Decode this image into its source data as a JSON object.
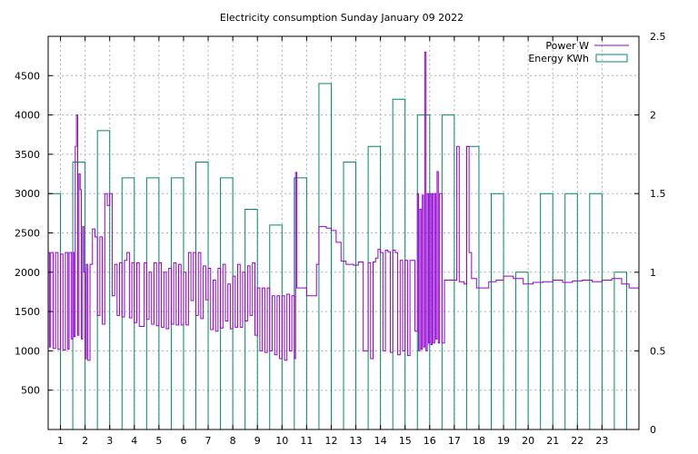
{
  "chart_data": {
    "type": "line",
    "title": "Electricity consumption Sunday January 09 2022",
    "grid": true,
    "legend_position": "top-right",
    "x_ticks": [
      "1",
      "2",
      "3",
      "4",
      "5",
      "6",
      "7",
      "8",
      "9",
      "10",
      "11",
      "12",
      "13",
      "14",
      "15",
      "16",
      "17",
      "18",
      "19",
      "20",
      "21",
      "22",
      "23"
    ],
    "x_range": [
      0,
      24
    ],
    "y_left": {
      "range": [
        0,
        5000
      ],
      "ticks": [
        "500",
        "1000",
        "1500",
        "2000",
        "2500",
        "3000",
        "3500",
        "4000",
        "4500"
      ]
    },
    "y_right": {
      "range": [
        0,
        2.5
      ],
      "ticks": [
        "0",
        "0.5",
        "1",
        "1.5",
        "2",
        "2.5"
      ]
    },
    "series": [
      {
        "name": "Power W",
        "axis": "left",
        "color": "#9400d3",
        "style": "step-line",
        "points": [
          [
            0.0,
            2250
          ],
          [
            0.05,
            1050
          ],
          [
            0.1,
            2250
          ],
          [
            0.2,
            1030
          ],
          [
            0.3,
            2250
          ],
          [
            0.4,
            1020
          ],
          [
            0.5,
            2230
          ],
          [
            0.6,
            1010
          ],
          [
            0.7,
            2250
          ],
          [
            0.8,
            1020
          ],
          [
            0.85,
            2250
          ],
          [
            0.95,
            1150
          ],
          [
            1.0,
            2250
          ],
          [
            1.05,
            1180
          ],
          [
            1.1,
            3600
          ],
          [
            1.15,
            4000
          ],
          [
            1.2,
            1200
          ],
          [
            1.25,
            3250
          ],
          [
            1.3,
            3050
          ],
          [
            1.35,
            1150
          ],
          [
            1.4,
            2580
          ],
          [
            1.45,
            2000
          ],
          [
            1.5,
            900
          ],
          [
            1.55,
            2100
          ],
          [
            1.6,
            880
          ],
          [
            1.7,
            2100
          ],
          [
            1.8,
            2550
          ],
          [
            1.9,
            2450
          ],
          [
            2.0,
            1450
          ],
          [
            2.1,
            2450
          ],
          [
            2.2,
            1340
          ],
          [
            2.3,
            3000
          ],
          [
            2.4,
            2850
          ],
          [
            2.5,
            3000
          ],
          [
            2.6,
            1700
          ],
          [
            2.7,
            2100
          ],
          [
            2.8,
            1450
          ],
          [
            2.9,
            2120
          ],
          [
            3.0,
            1430
          ],
          [
            3.1,
            2150
          ],
          [
            3.2,
            2250
          ],
          [
            3.3,
            1420
          ],
          [
            3.4,
            2120
          ],
          [
            3.5,
            1360
          ],
          [
            3.6,
            2120
          ],
          [
            3.7,
            1310
          ],
          [
            3.9,
            2120
          ],
          [
            4.0,
            1400
          ],
          [
            4.1,
            2000
          ],
          [
            4.2,
            1340
          ],
          [
            4.3,
            2120
          ],
          [
            4.4,
            1320
          ],
          [
            4.5,
            2120
          ],
          [
            4.6,
            1300
          ],
          [
            4.7,
            2000
          ],
          [
            4.8,
            1280
          ],
          [
            4.9,
            2050
          ],
          [
            5.0,
            1340
          ],
          [
            5.1,
            2120
          ],
          [
            5.2,
            1330
          ],
          [
            5.3,
            2100
          ],
          [
            5.4,
            1330
          ],
          [
            5.5,
            2000
          ],
          [
            5.6,
            1330
          ],
          [
            5.7,
            2250
          ],
          [
            5.8,
            1640
          ],
          [
            5.9,
            2250
          ],
          [
            6.0,
            1450
          ],
          [
            6.1,
            2250
          ],
          [
            6.2,
            1410
          ],
          [
            6.3,
            2080
          ],
          [
            6.4,
            1650
          ],
          [
            6.5,
            2050
          ],
          [
            6.6,
            1270
          ],
          [
            6.7,
            1900
          ],
          [
            6.8,
            1250
          ],
          [
            6.9,
            2050
          ],
          [
            7.0,
            1290
          ],
          [
            7.1,
            2100
          ],
          [
            7.2,
            1380
          ],
          [
            7.3,
            1850
          ],
          [
            7.4,
            1280
          ],
          [
            7.5,
            1950
          ],
          [
            7.6,
            1300
          ],
          [
            7.7,
            2100
          ],
          [
            7.8,
            1300
          ],
          [
            7.9,
            2000
          ],
          [
            8.0,
            1380
          ],
          [
            8.1,
            2080
          ],
          [
            8.2,
            1450
          ],
          [
            8.3,
            2120
          ],
          [
            8.4,
            1200
          ],
          [
            8.5,
            1800
          ],
          [
            8.6,
            1000
          ],
          [
            8.7,
            1800
          ],
          [
            8.8,
            980
          ],
          [
            8.9,
            1800
          ],
          [
            9.0,
            1000
          ],
          [
            9.1,
            1700
          ],
          [
            9.2,
            950
          ],
          [
            9.3,
            1700
          ],
          [
            9.4,
            900
          ],
          [
            9.5,
            1700
          ],
          [
            9.6,
            880
          ],
          [
            9.7,
            1720
          ],
          [
            9.8,
            1000
          ],
          [
            9.9,
            1700
          ],
          [
            10.0,
            900
          ],
          [
            10.05,
            3270
          ],
          [
            10.1,
            1800
          ],
          [
            10.3,
            1800
          ],
          [
            10.5,
            1700
          ],
          [
            10.9,
            2100
          ],
          [
            11.0,
            2580
          ],
          [
            11.3,
            2560
          ],
          [
            11.5,
            2530
          ],
          [
            11.7,
            2380
          ],
          [
            11.9,
            2140
          ],
          [
            12.1,
            2100
          ],
          [
            12.4,
            2090
          ],
          [
            12.6,
            2130
          ],
          [
            12.8,
            1000
          ],
          [
            13.0,
            2120
          ],
          [
            13.1,
            900
          ],
          [
            13.2,
            2130
          ],
          [
            13.3,
            2180
          ],
          [
            13.4,
            2290
          ],
          [
            13.5,
            2250
          ],
          [
            13.6,
            1000
          ],
          [
            13.7,
            2280
          ],
          [
            13.8,
            2260
          ],
          [
            13.9,
            980
          ],
          [
            14.0,
            2280
          ],
          [
            14.1,
            2250
          ],
          [
            14.2,
            950
          ],
          [
            14.3,
            2150
          ],
          [
            14.4,
            1000
          ],
          [
            14.5,
            2150
          ],
          [
            14.6,
            940
          ],
          [
            14.7,
            2150
          ],
          [
            14.9,
            1250
          ],
          [
            15.0,
            3000
          ],
          [
            15.05,
            1000
          ],
          [
            15.1,
            2800
          ],
          [
            15.15,
            1020
          ],
          [
            15.2,
            2980
          ],
          [
            15.25,
            1050
          ],
          [
            15.3,
            4800
          ],
          [
            15.35,
            1000
          ],
          [
            15.4,
            3000
          ],
          [
            15.45,
            1100
          ],
          [
            15.5,
            3000
          ],
          [
            15.55,
            1080
          ],
          [
            15.6,
            3000
          ],
          [
            15.65,
            1100
          ],
          [
            15.7,
            3000
          ],
          [
            15.75,
            1150
          ],
          [
            15.8,
            3280
          ],
          [
            15.85,
            1100
          ],
          [
            15.9,
            3000
          ],
          [
            16.0,
            1100
          ],
          [
            16.1,
            1900
          ],
          [
            16.4,
            1900
          ],
          [
            16.6,
            3600
          ],
          [
            16.7,
            1880
          ],
          [
            16.9,
            1850
          ],
          [
            17.0,
            3600
          ],
          [
            17.1,
            2250
          ],
          [
            17.2,
            1920
          ],
          [
            17.4,
            1800
          ],
          [
            17.9,
            1880
          ],
          [
            18.2,
            1900
          ],
          [
            18.5,
            1950
          ],
          [
            18.9,
            1920
          ],
          [
            19.3,
            1850
          ],
          [
            19.7,
            1870
          ],
          [
            20.1,
            1880
          ],
          [
            20.5,
            1900
          ],
          [
            20.9,
            1870
          ],
          [
            21.3,
            1890
          ],
          [
            21.7,
            1900
          ],
          [
            22.1,
            1880
          ],
          [
            22.5,
            1900
          ],
          [
            22.9,
            1920
          ],
          [
            23.3,
            1850
          ],
          [
            23.6,
            1800
          ]
        ]
      },
      {
        "name": "Energy KWh",
        "axis": "right",
        "color": "#008b6b",
        "style": "impulse-boxes",
        "bars": [
          [
            0,
            1.5
          ],
          [
            1,
            1.7
          ],
          [
            2,
            1.9
          ],
          [
            3,
            1.6
          ],
          [
            4,
            1.6
          ],
          [
            5,
            1.6
          ],
          [
            6,
            1.7
          ],
          [
            7,
            1.6
          ],
          [
            8,
            1.4
          ],
          [
            9,
            1.3
          ],
          [
            10,
            1.6
          ],
          [
            11,
            2.2
          ],
          [
            12,
            1.7
          ],
          [
            13,
            1.8
          ],
          [
            14,
            2.1
          ],
          [
            15,
            2.0
          ],
          [
            16,
            2.0
          ],
          [
            17,
            1.8
          ],
          [
            18,
            1.5
          ],
          [
            19,
            1.0
          ],
          [
            20,
            1.5
          ],
          [
            21,
            1.5
          ],
          [
            22,
            1.5
          ],
          [
            23,
            1.0
          ]
        ]
      }
    ]
  }
}
